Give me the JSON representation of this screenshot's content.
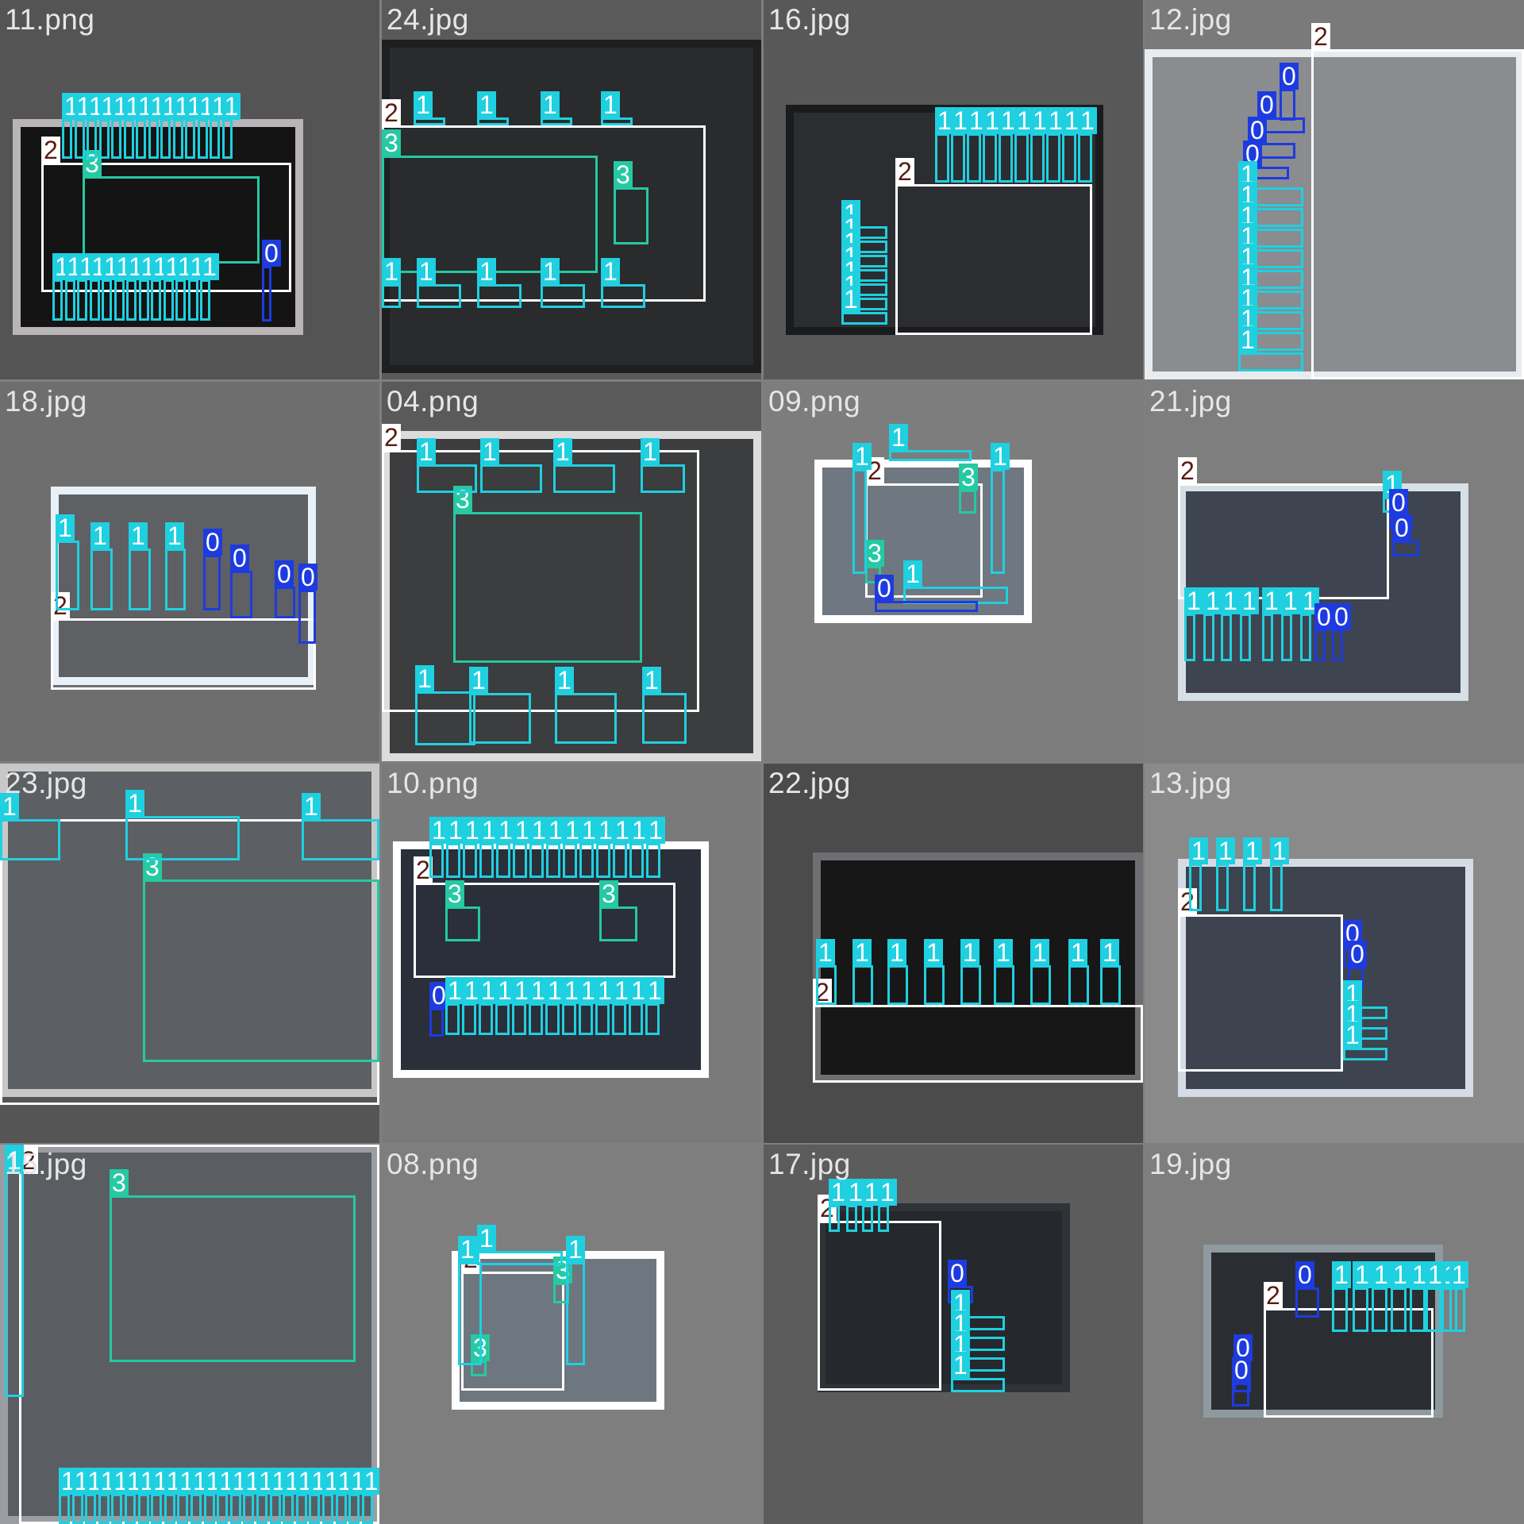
{
  "mosaic": {
    "tiles": [
      {
        "id": "t0",
        "filename": "11.png",
        "bg": "#545454",
        "photo": "#141414",
        "rim": "#b8b4b8"
      },
      {
        "id": "t1",
        "filename": "24.jpg",
        "bg": "#5a5a5a",
        "photo": "#2a2b2c",
        "rim": "#1e1f20"
      },
      {
        "id": "t2",
        "filename": "16.jpg",
        "bg": "#585858",
        "photo": "#2c2d30",
        "rim": "#1a1b1d"
      },
      {
        "id": "t3",
        "filename": "12.jpg",
        "bg": "#7a7a7a",
        "photo": "#8a8c90",
        "rim": "#e9ecef"
      },
      {
        "id": "t4",
        "filename": "18.jpg",
        "bg": "#6e6e6e",
        "photo": "#5e6064",
        "rim": "#e8f1f8"
      },
      {
        "id": "t5",
        "filename": "04.png",
        "bg": "#5a5a5a",
        "photo": "#3b3d3e",
        "rim": "#dcdcdc"
      },
      {
        "id": "t6",
        "filename": "09.png",
        "bg": "#7d7d7d",
        "photo": "#6f7780",
        "rim": "#ffffff"
      },
      {
        "id": "t7",
        "filename": "21.jpg",
        "bg": "#7e7e7e",
        "photo": "#3e4550",
        "rim": "#d6e0e6"
      },
      {
        "id": "t8",
        "filename": "23.jpg",
        "bg": "#555555",
        "photo": "#5c5f63",
        "rim": "#c8c8c8"
      },
      {
        "id": "t9",
        "filename": "10.png",
        "bg": "#7a7a7a",
        "photo": "#2a2f3a",
        "rim": "#ffffff"
      },
      {
        "id": "t10",
        "filename": "22.jpg",
        "bg": "#4b4b4b",
        "photo": "#171717",
        "rim": "#6e6f72"
      },
      {
        "id": "t11",
        "filename": "13.jpg",
        "bg": "#8a8a8a",
        "photo": "#3d4450",
        "rim": "#d6dce6"
      },
      {
        "id": "t12",
        "filename": "15.jpg",
        "bg": "#787878",
        "photo": "#5a5e63",
        "rim": "#9a9ea2"
      },
      {
        "id": "t13",
        "filename": "08.png",
        "bg": "#7e7e7e",
        "photo": "#6e7680",
        "rim": "#ffffff"
      },
      {
        "id": "t14",
        "filename": "17.jpg",
        "bg": "#5c5c5c",
        "photo": "#25282c",
        "rim": "#2f3338"
      },
      {
        "id": "t15",
        "filename": "19.jpg",
        "bg": "#7e7e7e",
        "photo": "#2a2e33",
        "rim": "#8f9aa0"
      }
    ],
    "class_colors": {
      "0": "#1d3be0",
      "1": "#1fd0e0",
      "2": "#ffffff",
      "3": "#25c9a3"
    }
  },
  "annotations": {
    "t0": [
      {
        "c": "2",
        "l": "2"
      },
      {
        "c": "3",
        "l": "3"
      },
      {
        "c": "0",
        "l": "0"
      },
      {
        "c": "1",
        "l": "1"
      },
      {
        "c": "1",
        "l": "1"
      },
      {
        "c": "1",
        "l": "1"
      },
      {
        "c": "1",
        "l": "1"
      },
      {
        "c": "1",
        "l": "1"
      },
      {
        "c": "1",
        "l": "1"
      },
      {
        "c": "1",
        "l": "1"
      },
      {
        "c": "1",
        "l": "1"
      },
      {
        "c": "1",
        "l": "1"
      },
      {
        "c": "1",
        "l": "1"
      },
      {
        "c": "1",
        "l": "1"
      },
      {
        "c": "1",
        "l": "1"
      },
      {
        "c": "1",
        "l": "1"
      },
      {
        "c": "1",
        "l": "1"
      },
      {
        "c": "1",
        "l": "1"
      },
      {
        "c": "1",
        "l": "1"
      },
      {
        "c": "1",
        "l": "1"
      },
      {
        "c": "1",
        "l": "1"
      },
      {
        "c": "1",
        "l": "1"
      },
      {
        "c": "1",
        "l": "1"
      },
      {
        "c": "1",
        "l": "1"
      },
      {
        "c": "1",
        "l": "1"
      },
      {
        "c": "1",
        "l": "1"
      },
      {
        "c": "1",
        "l": "1"
      },
      {
        "c": "1",
        "l": "1"
      },
      {
        "c": "1",
        "l": "1"
      },
      {
        "c": "1",
        "l": "1"
      }
    ],
    "t1": [
      {
        "c": "2",
        "l": "2"
      },
      {
        "c": "3",
        "l": "3"
      },
      {
        "c": "3",
        "l": "3"
      },
      {
        "c": "1",
        "l": "1"
      },
      {
        "c": "1",
        "l": "1"
      },
      {
        "c": "1",
        "l": "1"
      },
      {
        "c": "1",
        "l": "1"
      },
      {
        "c": "1",
        "l": "1"
      },
      {
        "c": "1",
        "l": "1"
      },
      {
        "c": "1",
        "l": "1"
      },
      {
        "c": "1",
        "l": "1"
      },
      {
        "c": "1",
        "l": "1"
      },
      {
        "c": "1",
        "l": "1"
      }
    ],
    "t2": [
      {
        "c": "2",
        "l": "2"
      },
      {
        "c": "1",
        "l": "1"
      },
      {
        "c": "1",
        "l": "1"
      },
      {
        "c": "1",
        "l": "1"
      },
      {
        "c": "1",
        "l": "1"
      },
      {
        "c": "1",
        "l": "1"
      },
      {
        "c": "1",
        "l": "1"
      },
      {
        "c": "1",
        "l": "1"
      },
      {
        "c": "1",
        "l": "1"
      },
      {
        "c": "1",
        "l": "1"
      },
      {
        "c": "1",
        "l": "1"
      },
      {
        "c": "1",
        "l": "1"
      },
      {
        "c": "1",
        "l": "1"
      },
      {
        "c": "1",
        "l": "1"
      },
      {
        "c": "1",
        "l": "1"
      },
      {
        "c": "1",
        "l": "1"
      },
      {
        "c": "1",
        "l": "1"
      },
      {
        "c": "1",
        "l": "1"
      }
    ],
    "t3": [
      {
        "c": "2",
        "l": "2"
      },
      {
        "c": "0",
        "l": "0"
      },
      {
        "c": "0",
        "l": "0"
      },
      {
        "c": "0",
        "l": "0"
      },
      {
        "c": "0",
        "l": "0"
      },
      {
        "c": "1",
        "l": "1"
      },
      {
        "c": "1",
        "l": "1"
      },
      {
        "c": "1",
        "l": "1"
      },
      {
        "c": "1",
        "l": "1"
      },
      {
        "c": "1",
        "l": "1"
      },
      {
        "c": "1",
        "l": "1"
      },
      {
        "c": "1",
        "l": "1"
      },
      {
        "c": "1",
        "l": "1"
      },
      {
        "c": "1",
        "l": "1"
      }
    ],
    "t4": [
      {
        "c": "2",
        "l": "2"
      },
      {
        "c": "1",
        "l": "1"
      },
      {
        "c": "1",
        "l": "1"
      },
      {
        "c": "1",
        "l": "1"
      },
      {
        "c": "1",
        "l": "1"
      },
      {
        "c": "0",
        "l": "0"
      },
      {
        "c": "0",
        "l": "0"
      },
      {
        "c": "0",
        "l": "0"
      },
      {
        "c": "0",
        "l": "0"
      }
    ],
    "t5": [
      {
        "c": "2",
        "l": "2"
      },
      {
        "c": "3",
        "l": "3"
      },
      {
        "c": "1",
        "l": "1"
      },
      {
        "c": "1",
        "l": "1"
      },
      {
        "c": "1",
        "l": "1"
      },
      {
        "c": "1",
        "l": "1"
      },
      {
        "c": "1",
        "l": "1"
      },
      {
        "c": "1",
        "l": "1"
      },
      {
        "c": "1",
        "l": "1"
      },
      {
        "c": "1",
        "l": "1"
      }
    ],
    "t6": [
      {
        "c": "2",
        "l": "2"
      },
      {
        "c": "3",
        "l": "3"
      },
      {
        "c": "3",
        "l": "3"
      },
      {
        "c": "1",
        "l": "1"
      },
      {
        "c": "1",
        "l": "1"
      },
      {
        "c": "1",
        "l": "1"
      },
      {
        "c": "1",
        "l": "1"
      },
      {
        "c": "0",
        "l": "0"
      },
      {
        "c": "0",
        "l": "0"
      }
    ],
    "t7": [
      {
        "c": "2",
        "l": "2"
      },
      {
        "c": "1",
        "l": "1"
      },
      {
        "c": "0",
        "l": "0"
      },
      {
        "c": "0",
        "l": "0"
      },
      {
        "c": "1",
        "l": "1"
      },
      {
        "c": "1",
        "l": "1"
      },
      {
        "c": "1",
        "l": "1"
      },
      {
        "c": "1",
        "l": "1"
      },
      {
        "c": "1",
        "l": "1"
      },
      {
        "c": "1",
        "l": "1"
      },
      {
        "c": "1",
        "l": "1"
      },
      {
        "c": "0",
        "l": "0"
      },
      {
        "c": "0",
        "l": "0"
      }
    ],
    "t8": [
      {
        "c": "2",
        "l": "2"
      },
      {
        "c": "3",
        "l": "3"
      },
      {
        "c": "1",
        "l": "1"
      },
      {
        "c": "1",
        "l": "1"
      },
      {
        "c": "1",
        "l": "1"
      }
    ],
    "t9": [
      {
        "c": "2",
        "l": "2"
      },
      {
        "c": "3",
        "l": "3"
      },
      {
        "c": "3",
        "l": "3"
      },
      {
        "c": "0",
        "l": "0"
      },
      {
        "c": "1",
        "l": "1"
      },
      {
        "c": "1",
        "l": "1"
      },
      {
        "c": "1",
        "l": "1"
      },
      {
        "c": "1",
        "l": "1"
      },
      {
        "c": "1",
        "l": "1"
      },
      {
        "c": "1",
        "l": "1"
      },
      {
        "c": "1",
        "l": "1"
      },
      {
        "c": "1",
        "l": "1"
      },
      {
        "c": "1",
        "l": "1"
      },
      {
        "c": "1",
        "l": "1"
      },
      {
        "c": "1",
        "l": "1"
      },
      {
        "c": "1",
        "l": "1"
      },
      {
        "c": "1",
        "l": "1"
      },
      {
        "c": "1",
        "l": "1"
      },
      {
        "c": "1",
        "l": "1"
      },
      {
        "c": "1",
        "l": "1"
      },
      {
        "c": "1",
        "l": "1"
      },
      {
        "c": "1",
        "l": "1"
      },
      {
        "c": "1",
        "l": "1"
      },
      {
        "c": "1",
        "l": "1"
      },
      {
        "c": "1",
        "l": "1"
      },
      {
        "c": "1",
        "l": "1"
      },
      {
        "c": "1",
        "l": "1"
      },
      {
        "c": "1",
        "l": "1"
      },
      {
        "c": "1",
        "l": "1"
      },
      {
        "c": "1",
        "l": "1"
      },
      {
        "c": "1",
        "l": "1"
      }
    ],
    "t10": [
      {
        "c": "2",
        "l": "2"
      },
      {
        "c": "1",
        "l": "1"
      },
      {
        "c": "1",
        "l": "1"
      },
      {
        "c": "1",
        "l": "1"
      },
      {
        "c": "1",
        "l": "1"
      },
      {
        "c": "1",
        "l": "1"
      },
      {
        "c": "1",
        "l": "1"
      },
      {
        "c": "1",
        "l": "1"
      },
      {
        "c": "1",
        "l": "1"
      },
      {
        "c": "1",
        "l": "1"
      }
    ],
    "t11": [
      {
        "c": "2",
        "l": "2"
      },
      {
        "c": "0",
        "l": "0"
      },
      {
        "c": "0",
        "l": "0"
      },
      {
        "c": "1",
        "l": "1"
      },
      {
        "c": "1",
        "l": "1"
      },
      {
        "c": "1",
        "l": "1"
      },
      {
        "c": "1",
        "l": "1"
      },
      {
        "c": "1",
        "l": "1"
      },
      {
        "c": "1",
        "l": "1"
      },
      {
        "c": "1",
        "l": "1"
      }
    ],
    "t12": [
      {
        "c": "2",
        "l": "2"
      },
      {
        "c": "3",
        "l": "3"
      },
      {
        "c": "1",
        "l": "1"
      },
      {
        "c": "1",
        "l": "1"
      },
      {
        "c": "1",
        "l": "1"
      },
      {
        "c": "1",
        "l": "1"
      },
      {
        "c": "1",
        "l": "1"
      },
      {
        "c": "1",
        "l": "1"
      },
      {
        "c": "1",
        "l": "1"
      },
      {
        "c": "1",
        "l": "1"
      },
      {
        "c": "1",
        "l": "1"
      },
      {
        "c": "1",
        "l": "1"
      },
      {
        "c": "1",
        "l": "1"
      },
      {
        "c": "1",
        "l": "1"
      },
      {
        "c": "1",
        "l": "1"
      },
      {
        "c": "1",
        "l": "1"
      },
      {
        "c": "1",
        "l": "1"
      },
      {
        "c": "1",
        "l": "1"
      },
      {
        "c": "1",
        "l": "1"
      },
      {
        "c": "1",
        "l": "1"
      },
      {
        "c": "1",
        "l": "1"
      },
      {
        "c": "1",
        "l": "1"
      },
      {
        "c": "1",
        "l": "1"
      },
      {
        "c": "1",
        "l": "1"
      },
      {
        "c": "1",
        "l": "1"
      },
      {
        "c": "1",
        "l": "1"
      },
      {
        "c": "1",
        "l": "1"
      },
      {
        "c": "1",
        "l": "1"
      }
    ],
    "t13": [
      {
        "c": "2",
        "l": "2"
      },
      {
        "c": "3",
        "l": "3"
      },
      {
        "c": "3",
        "l": "3"
      },
      {
        "c": "1",
        "l": "1"
      },
      {
        "c": "1",
        "l": "1"
      },
      {
        "c": "1",
        "l": "1"
      }
    ],
    "t14": [
      {
        "c": "2",
        "l": "2"
      },
      {
        "c": "1",
        "l": "1"
      },
      {
        "c": "1",
        "l": "1"
      },
      {
        "c": "1",
        "l": "1"
      },
      {
        "c": "1",
        "l": "1"
      },
      {
        "c": "0",
        "l": "0"
      },
      {
        "c": "1",
        "l": "1"
      },
      {
        "c": "1",
        "l": "1"
      },
      {
        "c": "1",
        "l": "1"
      },
      {
        "c": "1",
        "l": "1"
      }
    ],
    "t15": [
      {
        "c": "2",
        "l": "2"
      },
      {
        "c": "0",
        "l": "0"
      },
      {
        "c": "0",
        "l": "0"
      },
      {
        "c": "0",
        "l": "0"
      },
      {
        "c": "1",
        "l": "1"
      },
      {
        "c": "1",
        "l": "1"
      },
      {
        "c": "1",
        "l": "1"
      },
      {
        "c": "1",
        "l": "1"
      },
      {
        "c": "1",
        "l": "1"
      },
      {
        "c": "1",
        "l": "1"
      },
      {
        "c": "1",
        "l": "1"
      },
      {
        "c": "1",
        "l": "1"
      }
    ]
  }
}
